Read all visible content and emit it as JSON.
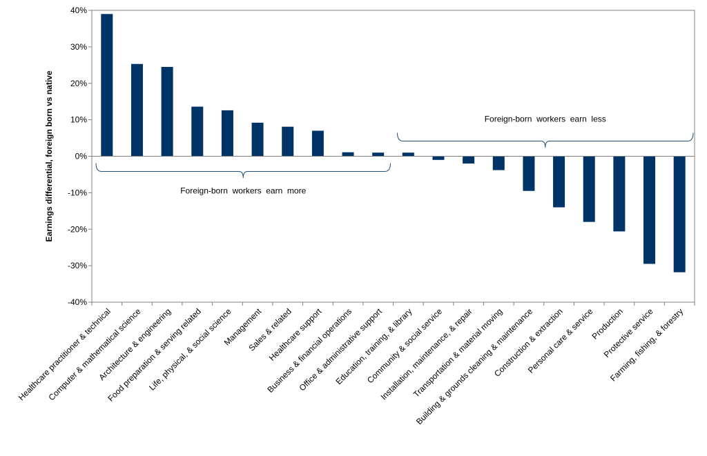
{
  "chart_data": {
    "type": "bar",
    "title": "",
    "xlabel": "",
    "ylabel": "Earnings differential, foreign born vs native",
    "ylim": [
      -40,
      40
    ],
    "yticks": [
      40,
      30,
      20,
      10,
      0,
      -10,
      -20,
      -30,
      -40
    ],
    "ytick_labels": [
      "40%",
      "30%",
      "20%",
      "10%",
      "0%",
      "-10%",
      "-20%",
      "-30%",
      "-40%"
    ],
    "grid": false,
    "legend": "none",
    "categories": [
      "Healthcare practitioner & technical",
      "Computer & mathematical science",
      "Architecture & engineering",
      "Food preparation & serving related",
      "Life, physical, & social science",
      "Management",
      "Sales & related",
      "Healthcare support",
      "Business & financial operations",
      "Office & administrative support",
      "Education, training, & library",
      "Community & social service",
      "Installation, maintenance, & repair",
      "Transportation & material moving",
      "Building & grounds cleaning & maintenance",
      "Construction & extraction",
      "Personal care & service",
      "Production",
      "Protective service",
      "Farming, fishing, & forestry"
    ],
    "series": [
      {
        "name": "Earnings differential",
        "color": "#003366",
        "values": [
          39,
          25.3,
          24.5,
          13.6,
          12.6,
          9.2,
          8.1,
          7,
          1.1,
          1,
          1,
          -1,
          -2,
          -3.8,
          -9.5,
          -14,
          -18,
          -20.6,
          -29.5,
          -31.8
        ]
      }
    ],
    "annotations": [
      {
        "text": "Foreign-born  workers  earn  more",
        "bracket_from_category": 0,
        "bracket_to_category": 9,
        "placement": "below zero line, centered under bracket"
      },
      {
        "text": "Foreign-born  workers  earn  less",
        "bracket_from_category": 10,
        "bracket_to_category": 19,
        "placement": "above zero line, centered over bracket"
      }
    ]
  }
}
